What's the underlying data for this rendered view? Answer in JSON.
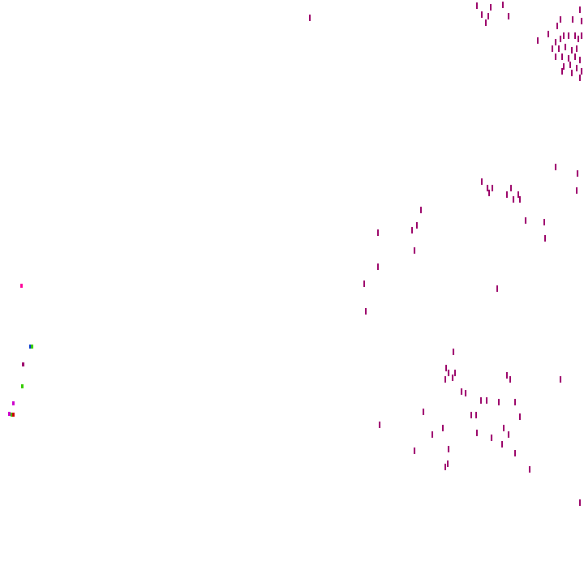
{
  "colors": {
    "background": "#ffffff",
    "primary_mark": "#990066",
    "pink_mark": "#ff0099",
    "magenta_mark": "#cc00cc",
    "blue_mark": "#0033cc",
    "green_mark": "#33cc00",
    "red_mark": "#cc0000"
  }
}
